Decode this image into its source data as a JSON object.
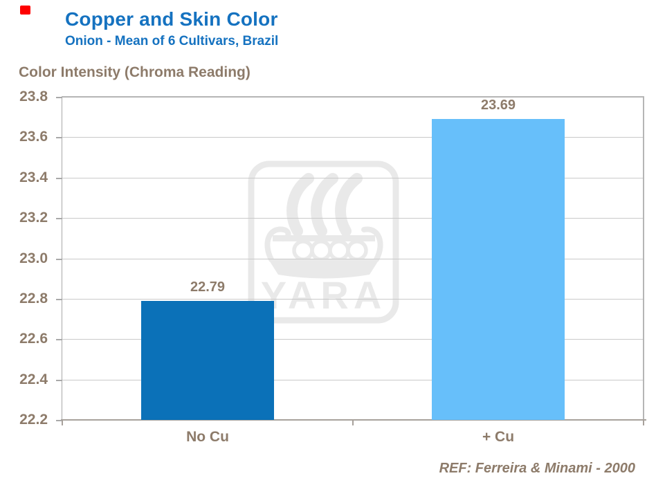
{
  "header": {
    "title": "Copper and Skin Color",
    "subtitle": "Onion - Mean of 6 Cultivars, Brazil"
  },
  "footer": {
    "reference": "REF: Ferreira & Minami - 2000"
  },
  "watermark": {
    "text": "YARA"
  },
  "colors": {
    "title_blue": "#1572C0",
    "text_brown": "#8D7B6A",
    "bar_no_cu": "#0B71B8",
    "bar_plus_cu": "#67BFFA",
    "gridline": "#C9C9C9",
    "axis_gray": "#A8A8A8",
    "axis_warm_gray": "#A7A19B",
    "border_gray": "#B5B5B5",
    "watermark_gray": "#E9E9E9",
    "red_marker": "#FE0000"
  },
  "chart_data": {
    "type": "bar",
    "title": "Copper and Skin Color",
    "subtitle": "Onion - Mean of 6 Cultivars, Brazil",
    "ylabel": "Color Intensity (Chroma Reading)",
    "xlabel": "",
    "categories": [
      "No Cu",
      "+ Cu"
    ],
    "values": [
      22.79,
      23.69
    ],
    "value_labels": [
      "22.79",
      "23.69"
    ],
    "bar_colors": [
      "#0B71B8",
      "#67BFFA"
    ],
    "ylim": [
      22.2,
      23.8
    ],
    "ytick_step": 0.2,
    "yticks": [
      "23.8",
      "23.6",
      "23.4",
      "23.2",
      "23.0",
      "22.8",
      "22.6",
      "22.4",
      "22.2"
    ],
    "grid": true,
    "legend": false,
    "annotation": "REF: Ferreira & Minami - 2000",
    "watermark": "YARA"
  }
}
